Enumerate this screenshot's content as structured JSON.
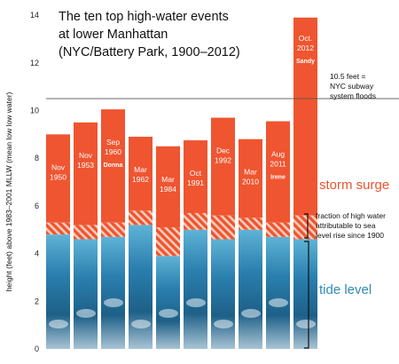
{
  "chart_data": {
    "type": "bar",
    "title_lines": [
      "The ten top high-water events",
      "at lower Manhattan",
      "(NYC/Battery Park, 1900–2012)"
    ],
    "ylabel": "height (feet) above 1983–2001 MLLW (mean low low water)",
    "ylim": [
      0,
      14
    ],
    "yticks": [
      0,
      2,
      4,
      6,
      8,
      10,
      12,
      14
    ],
    "bars": [
      {
        "label_lines": [
          "Nov",
          "1950"
        ],
        "name": "",
        "total": 9.0,
        "tide": 4.8,
        "sea_level_rise": 0.5
      },
      {
        "label_lines": [
          "Nov",
          "1953"
        ],
        "name": "",
        "total": 9.5,
        "tide": 4.6,
        "sea_level_rise": 0.6
      },
      {
        "label_lines": [
          "Sep",
          "1960"
        ],
        "name": "Donna",
        "total": 10.05,
        "tide": 4.7,
        "sea_level_rise": 0.6
      },
      {
        "label_lines": [
          "Mar",
          "1962"
        ],
        "name": "",
        "total": 8.9,
        "tide": 5.2,
        "sea_level_rise": 0.6
      },
      {
        "label_lines": [
          "Mar",
          "1984"
        ],
        "name": "",
        "total": 8.5,
        "tide": 3.9,
        "sea_level_rise": 1.2
      },
      {
        "label_lines": [
          "Oct",
          "1991"
        ],
        "name": "",
        "total": 8.75,
        "tide": 5.0,
        "sea_level_rise": 0.7
      },
      {
        "label_lines": [
          "Dec",
          "1992"
        ],
        "name": "",
        "total": 9.7,
        "tide": 4.6,
        "sea_level_rise": 1.0
      },
      {
        "label_lines": [
          "Mar",
          "2010"
        ],
        "name": "",
        "total": 8.8,
        "tide": 5.0,
        "sea_level_rise": 0.5
      },
      {
        "label_lines": [
          "Aug",
          "2011"
        ],
        "name": "Irene",
        "total": 9.55,
        "tide": 4.7,
        "sea_level_rise": 0.6
      },
      {
        "label_lines": [
          "Oct.",
          "2012"
        ],
        "name": "Sandy",
        "total": 13.9,
        "tide": 4.6,
        "sea_level_rise": 1.0
      }
    ],
    "reference_line": {
      "value": 10.5,
      "label_lines": [
        "10.5 feet =",
        "NYC subway",
        "system floods"
      ]
    },
    "bracket_note_lines": [
      "fraction of high water",
      "attributable to sea",
      "level rise since 1900"
    ],
    "legend": {
      "storm_surge": "storm surge",
      "tide_level": "tide level"
    },
    "colors": {
      "storm_surge": "#ef5530",
      "tide_level": "#3a92bf",
      "hatch": "#f7cdbd",
      "reference_line": "#555555"
    }
  }
}
